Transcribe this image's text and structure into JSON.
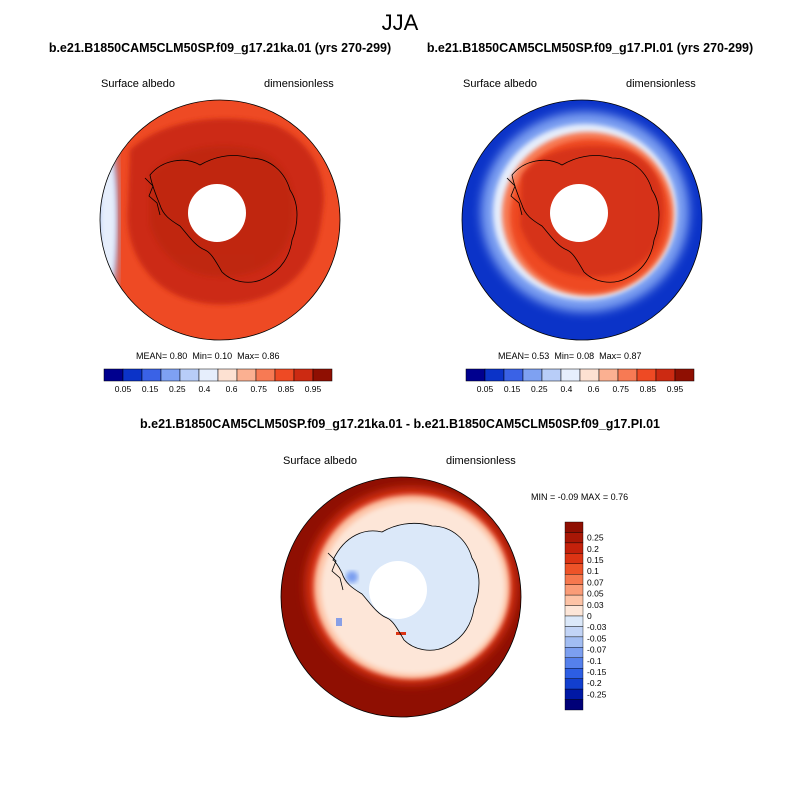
{
  "suptitle": "JJA",
  "panels": [
    {
      "title": "b.e21.B1850CAM5CLM50SP.f09_g17.21ka.01 (yrs 270-299)",
      "variable": "Surface albedo",
      "units": "dimensionless",
      "stats": {
        "mean_label": "MEAN=",
        "mean": "0.80",
        "min_label": "Min=",
        "min": "0.10",
        "max_label": "Max=",
        "max": "0.86"
      }
    },
    {
      "title": "b.e21.B1850CAM5CLM50SP.f09_g17.PI.01 (yrs 270-299)",
      "variable": "Surface albedo",
      "units": "dimensionless",
      "stats": {
        "mean_label": "MEAN=",
        "mean": "0.53",
        "min_label": "Min=",
        "min": "0.08",
        "max_label": "Max=",
        "max": "0.87"
      }
    },
    {
      "title": "b.e21.B1850CAM5CLM50SP.f09_g17.21ka.01 - b.e21.B1850CAM5CLM50SP.f09_g17.PI.01",
      "variable": "Surface albedo",
      "units": "dimensionless",
      "stats": {
        "min_label": "MIN =",
        "min": "-0.09",
        "max_label": "MAX =",
        "max": "0.76"
      }
    }
  ],
  "colorbar_albedo": {
    "labels": [
      "0.05",
      "0.15",
      "0.25",
      "0.4",
      "0.6",
      "0.75",
      "0.85",
      "0.95"
    ],
    "colors": [
      "#00008f",
      "#0b33c8",
      "#3a62e6",
      "#7ea1f2",
      "#b8cdf8",
      "#e6eefc",
      "#fde1d2",
      "#fbb091",
      "#f77a54",
      "#ee4a24",
      "#cc2a12",
      "#8f0f02"
    ]
  },
  "colorbar_diff": {
    "labels": [
      "0.25",
      "0.2",
      "0.15",
      "0.1",
      "0.07",
      "0.05",
      "0.03",
      "0",
      "-0.03",
      "-0.05",
      "-0.07",
      "-0.1",
      "-0.15",
      "-0.2",
      "-0.25"
    ],
    "colors": [
      "#8f0f02",
      "#a81706",
      "#c4210b",
      "#dc3414",
      "#ee5328",
      "#f6784e",
      "#fa9c77",
      "#fdc3a6",
      "#fde6d8",
      "#dbe8f9",
      "#c2d4f6",
      "#a2bdf2",
      "#7c9ff0",
      "#5580ec",
      "#2d5ee3",
      "#123fcf",
      "#0018a5",
      "#000078"
    ]
  },
  "chart_data": [
    {
      "type": "heatmap",
      "title": "b.e21.B1850CAM5CLM50SP.f09_g17.21ka.01 (yrs 270-299)",
      "variable": "Surface albedo",
      "units": "dimensionless",
      "projection": "south polar stereographic",
      "season": "JJA",
      "mean": 0.8,
      "min": 0.1,
      "max": 0.86,
      "contour_levels": [
        0.05,
        0.1,
        0.15,
        0.2,
        0.25,
        0.3,
        0.4,
        0.5,
        0.6,
        0.7,
        0.75,
        0.8,
        0.85,
        0.9,
        0.95
      ]
    },
    {
      "type": "heatmap",
      "title": "b.e21.B1850CAM5CLM50SP.f09_g17.PI.01 (yrs 270-299)",
      "variable": "Surface albedo",
      "units": "dimensionless",
      "projection": "south polar stereographic",
      "season": "JJA",
      "mean": 0.53,
      "min": 0.08,
      "max": 0.87,
      "contour_levels": [
        0.05,
        0.1,
        0.15,
        0.2,
        0.25,
        0.3,
        0.4,
        0.5,
        0.6,
        0.7,
        0.75,
        0.8,
        0.85,
        0.9,
        0.95
      ]
    },
    {
      "type": "heatmap",
      "title": "b.e21.B1850CAM5CLM50SP.f09_g17.21ka.01 - b.e21.B1850CAM5CLM50SP.f09_g17.PI.01",
      "variable": "Surface albedo",
      "units": "dimensionless",
      "projection": "south polar stereographic",
      "season": "JJA",
      "min": -0.09,
      "max": 0.76,
      "contour_levels": [
        -0.25,
        -0.2,
        -0.15,
        -0.1,
        -0.07,
        -0.05,
        -0.03,
        0,
        0.03,
        0.05,
        0.07,
        0.1,
        0.15,
        0.2,
        0.25
      ]
    }
  ]
}
